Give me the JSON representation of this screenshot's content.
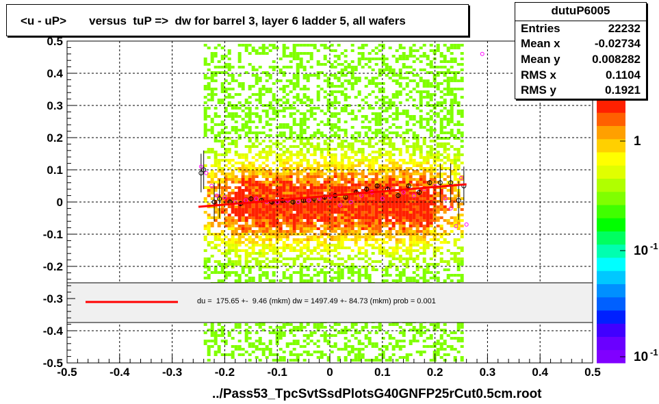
{
  "title": "<u - uP>       versus  tuP =>  dw for barrel 3, layer 6 ladder 5, all wafers",
  "stats": {
    "name": "dutuP6005",
    "rows": [
      {
        "label": "Entries",
        "value": "22232"
      },
      {
        "label": "Mean x",
        "value": "-0.02734"
      },
      {
        "label": "Mean y",
        "value": "0.008282"
      },
      {
        "label": "RMS x",
        "value": "0.1104"
      },
      {
        "label": "RMS y",
        "value": "0.1921"
      }
    ]
  },
  "legend_text": "du =  175.65 +-  9.46 (mkm) dw = 1497.49 +- 84.73 (mkm) prob = 0.001",
  "colors": {
    "fit_line": "#ff0000",
    "profile_black": "#000000",
    "profile_magenta": "#ff00ff",
    "palette": [
      "#8000ff",
      "#6a00ff",
      "#4000ff",
      "#0020ff",
      "#0060ff",
      "#0090ff",
      "#00c8ff",
      "#00ffff",
      "#00ffb0",
      "#00ff60",
      "#00ff00",
      "#40ff00",
      "#80ff00",
      "#b0ff00",
      "#e0ff00",
      "#ffff00",
      "#ffd000",
      "#ffa000",
      "#ff6000",
      "#ff2000"
    ]
  },
  "chart_data": {
    "type": "heatmap",
    "title": "<u - uP>       versus  tuP =>  dw for barrel 3, layer 6 ladder 5, all wafers",
    "xlabel": "../Pass53_TpcSvtSsdPlotsG40GNFP25rCut0.5cm.root",
    "ylabel": "",
    "xlim": [
      -0.5,
      0.5
    ],
    "ylim": [
      -0.5,
      0.5
    ],
    "x_ticks": [
      "-0.5",
      "-0.4",
      "-0.3",
      "-0.2",
      "-0.1",
      "0",
      "0.1",
      "0.2",
      "0.3",
      "0.4",
      "0.5"
    ],
    "y_ticks": [
      "-0.5",
      "-0.4",
      "-0.3",
      "-0.2",
      "-0.1",
      "0",
      "0.1",
      "0.2",
      "0.3",
      "0.4",
      "0.5"
    ],
    "colorbar_ticks": [
      "1",
      "10-1",
      "10-1"
    ],
    "grid": true,
    "fit_line": {
      "x": [
        -0.25,
        0.26
      ],
      "y": [
        -0.015,
        0.055
      ]
    },
    "profile_black": {
      "x": [
        -0.245,
        -0.24,
        -0.22,
        -0.21,
        -0.19,
        -0.17,
        -0.15,
        -0.13,
        -0.11,
        -0.09,
        -0.07,
        -0.05,
        -0.03,
        -0.01,
        0.01,
        0.03,
        0.05,
        0.07,
        0.09,
        0.11,
        0.13,
        0.15,
        0.17,
        0.19,
        0.21,
        0.23,
        0.245,
        0.255
      ],
      "y": [
        0.09,
        0.1,
        0.0,
        0.01,
        0.0,
        -0.005,
        0.01,
        0.005,
        0.0,
        0.005,
        0.0,
        0.005,
        0.01,
        0.015,
        0.02,
        0.015,
        0.03,
        0.04,
        0.05,
        0.04,
        0.02,
        0.05,
        0.03,
        0.06,
        0.06,
        0.06,
        0.005,
        0.05
      ]
    },
    "profile_magenta": {
      "x": [
        -0.245,
        -0.235,
        -0.225,
        -0.215,
        -0.2,
        -0.18,
        -0.16,
        -0.14,
        -0.12,
        -0.1,
        -0.08,
        -0.06,
        -0.04,
        -0.02,
        0.0,
        0.02,
        0.04,
        0.06,
        0.08,
        0.1,
        0.12,
        0.14,
        0.16,
        0.18,
        0.2,
        0.22,
        0.23,
        0.24,
        0.25,
        0.26,
        0.29
      ],
      "y": [
        0.11,
        0.09,
        0.05,
        0.02,
        0.015,
        0.0,
        0.005,
        0.01,
        0.0,
        0.0,
        0.005,
        0.0,
        0.005,
        0.01,
        0.015,
        -0.01,
        0.0,
        0.02,
        0.03,
        0.01,
        0.04,
        0.03,
        0.02,
        0.04,
        0.05,
        0.01,
        -0.02,
        -0.075,
        0.075,
        -0.07,
        0.46
      ]
    }
  }
}
